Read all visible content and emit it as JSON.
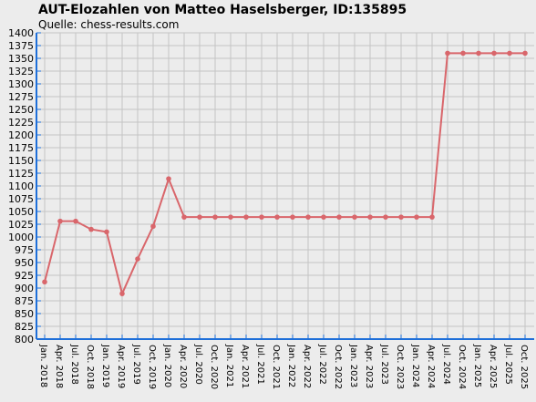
{
  "chart_data": {
    "type": "line",
    "title": "AUT-Elozahlen von Matteo Haselsberger, ID:135895",
    "subtitle": "Quelle: chess-results.com",
    "categories": [
      "Jan. 2018",
      "Apr. 2018",
      "Jul. 2018",
      "Oct. 2018",
      "Jan. 2019",
      "Apr. 2019",
      "Jul. 2019",
      "Oct. 2019",
      "Jan. 2020",
      "Apr. 2020",
      "Jul. 2020",
      "Oct. 2020",
      "Jan. 2021",
      "Apr. 2021",
      "Jul. 2021",
      "Oct. 2021",
      "Jan. 2022",
      "Apr. 2022",
      "Jul. 2022",
      "Oct. 2022",
      "Jan. 2023",
      "Apr. 2023",
      "Jul. 2023",
      "Oct. 2023",
      "Jan. 2024",
      "Apr. 2024",
      "Jul. 2024",
      "Oct. 2024",
      "Jan. 2025",
      "Apr. 2025",
      "Jul. 2025",
      "Oct. 2025"
    ],
    "values": [
      912,
      1031,
      1031,
      1015,
      1010,
      889,
      957,
      1021,
      1114,
      1039,
      1039,
      1039,
      1039,
      1039,
      1039,
      1039,
      1039,
      1039,
      1039,
      1039,
      1039,
      1039,
      1039,
      1039,
      1039,
      1039,
      1360,
      1360,
      1360,
      1360,
      1360,
      1360
    ],
    "color": "#d9666b",
    "ylim": [
      800,
      1400
    ],
    "yticks": [
      800,
      825,
      850,
      875,
      900,
      925,
      950,
      975,
      1000,
      1025,
      1050,
      1075,
      1100,
      1125,
      1150,
      1175,
      1200,
      1225,
      1250,
      1275,
      1300,
      1325,
      1350,
      1375,
      1400
    ],
    "grid": true
  }
}
